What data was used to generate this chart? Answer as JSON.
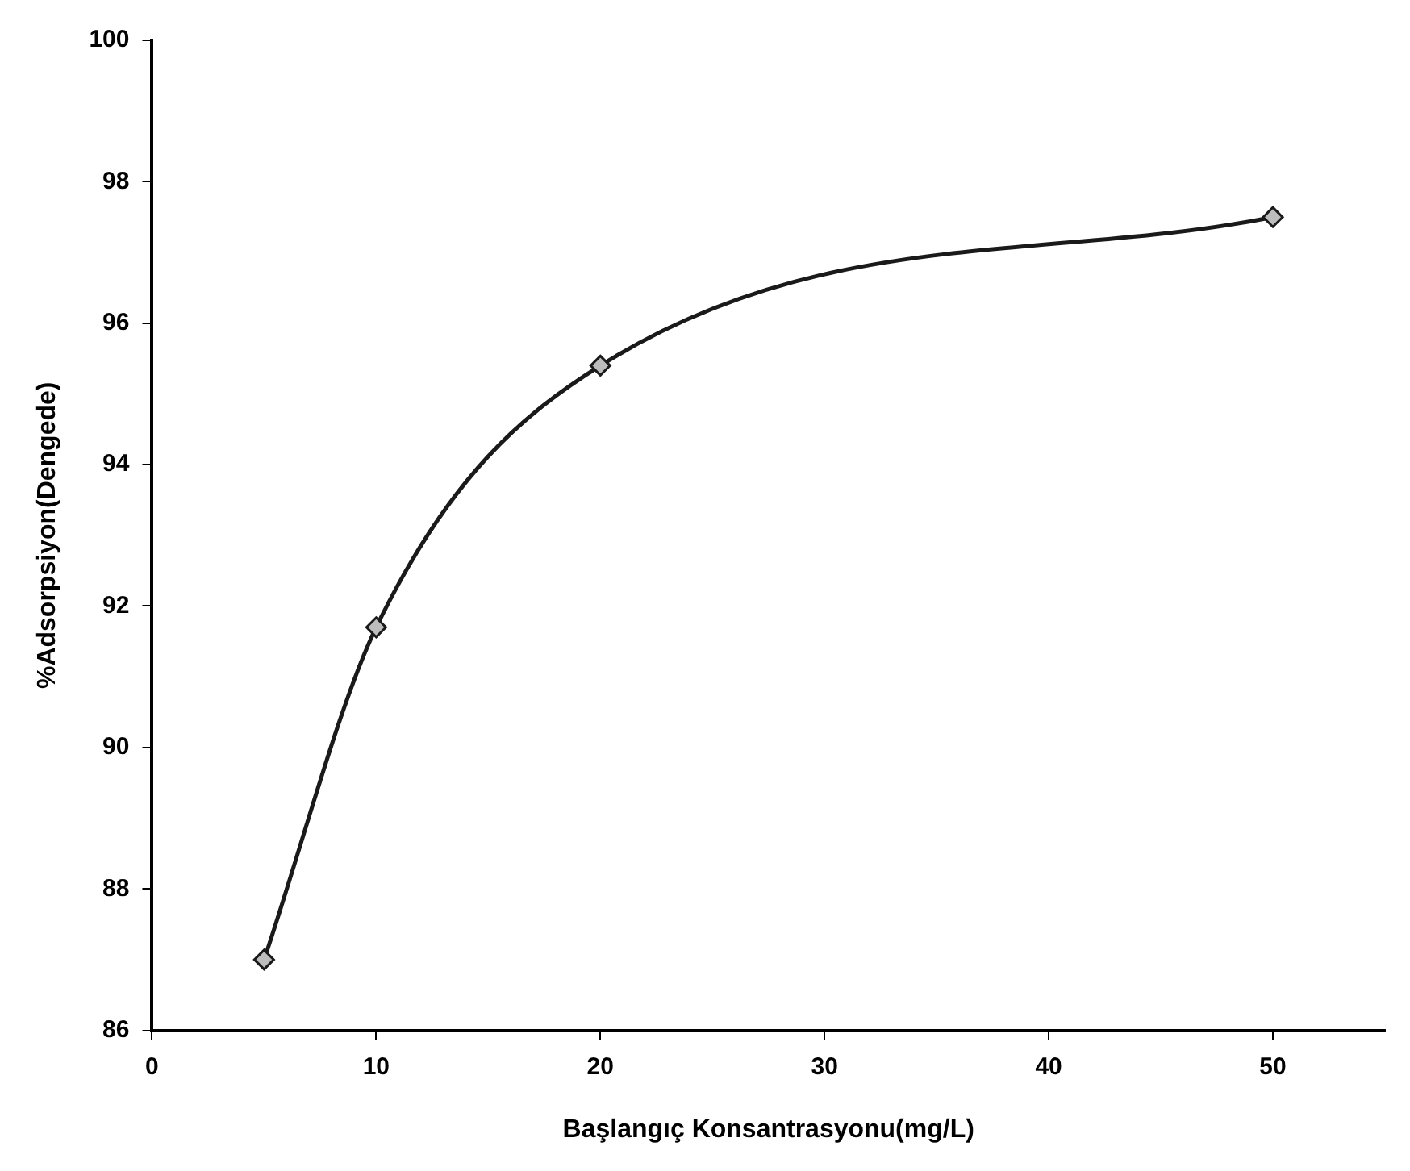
{
  "chart_data": {
    "type": "line",
    "xlabel": "Başlangıç Konsantrasyonu(mg/L)",
    "ylabel": "%Adsorpsiyon(Dengede)",
    "x": [
      5,
      10,
      20,
      50
    ],
    "series": [
      {
        "color": "#1a1a1a",
        "values": [
          87.0,
          91.7,
          95.4,
          97.5
        ]
      }
    ],
    "xlim": [
      0,
      55
    ],
    "xticks": [
      0,
      10,
      20,
      30,
      40,
      50
    ],
    "ylim": [
      86,
      100
    ],
    "yticks": [
      86,
      88,
      90,
      92,
      94,
      96,
      98,
      100
    ],
    "grid": false,
    "legend": false,
    "marker": "diamond",
    "line_style": "solid"
  }
}
